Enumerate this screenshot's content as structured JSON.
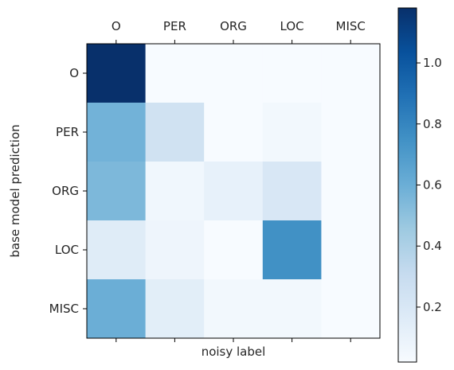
{
  "chart_data": {
    "type": "heatmap",
    "title": "",
    "xlabel": "noisy label",
    "ylabel": "base model prediction",
    "columns": [
      "O",
      "PER",
      "ORG",
      "LOC",
      "MISC"
    ],
    "rows": [
      "O",
      "PER",
      "ORG",
      "LOC",
      "MISC"
    ],
    "values": [
      [
        1.18,
        0.02,
        0.02,
        0.02,
        0.02
      ],
      [
        0.58,
        0.25,
        0.02,
        0.05,
        0.02
      ],
      [
        0.55,
        0.06,
        0.11,
        0.2,
        0.02
      ],
      [
        0.16,
        0.07,
        0.02,
        0.75,
        0.02
      ],
      [
        0.6,
        0.14,
        0.05,
        0.05,
        0.02
      ]
    ],
    "colormap": "Blues",
    "colorbar": {
      "range": [
        0.02,
        1.18
      ],
      "ticks": [
        0.2,
        0.4,
        0.6,
        0.8,
        1.0
      ],
      "tick_labels": [
        "0.2",
        "0.4",
        "0.6",
        "0.8",
        "1.0"
      ]
    },
    "grid": false
  }
}
